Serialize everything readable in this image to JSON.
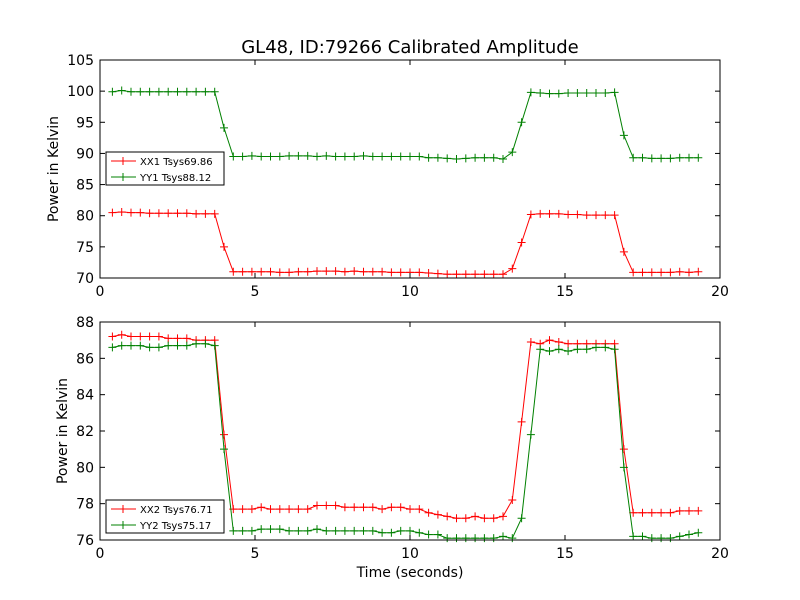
{
  "title": "GL48, ID:79266 Calibrated Amplitude",
  "chart_data": [
    {
      "type": "line",
      "ylabel": "Power in Kelvin",
      "xlabel": "",
      "xlim": [
        0,
        20
      ],
      "ylim": [
        70,
        105
      ],
      "xticks": [
        "0",
        "5",
        "10",
        "15",
        "20"
      ],
      "yticks": [
        "70",
        "75",
        "80",
        "85",
        "90",
        "95",
        "100",
        "105"
      ],
      "grid": false,
      "legend_position": "center-left",
      "x": [
        0.4,
        0.7,
        1.0,
        1.3,
        1.6,
        1.9,
        2.2,
        2.5,
        2.8,
        3.1,
        3.4,
        3.7,
        4.0,
        4.3,
        4.6,
        4.9,
        5.2,
        5.5,
        5.8,
        6.1,
        6.4,
        6.7,
        7.0,
        7.3,
        7.6,
        7.9,
        8.2,
        8.5,
        8.8,
        9.1,
        9.4,
        9.7,
        10.0,
        10.3,
        10.6,
        10.9,
        11.2,
        11.5,
        11.8,
        12.1,
        12.4,
        12.7,
        13.0,
        13.3,
        13.6,
        13.9,
        14.2,
        14.5,
        14.8,
        15.1,
        15.4,
        15.7,
        16.0,
        16.3,
        16.6,
        16.9,
        17.2,
        17.5,
        17.8,
        18.1,
        18.4,
        18.7,
        19.0,
        19.3
      ],
      "series": [
        {
          "name": "XX1 Tsys69.86",
          "color": "#ff0000",
          "values": [
            80.5,
            80.6,
            80.5,
            80.5,
            80.4,
            80.4,
            80.4,
            80.4,
            80.4,
            80.3,
            80.3,
            80.3,
            75.0,
            71.0,
            71.0,
            71.0,
            71.0,
            71.0,
            70.9,
            70.9,
            71.0,
            71.0,
            71.1,
            71.1,
            71.1,
            71.0,
            71.1,
            71.0,
            71.0,
            71.0,
            70.9,
            70.9,
            70.9,
            70.9,
            70.8,
            70.7,
            70.6,
            70.6,
            70.6,
            70.6,
            70.6,
            70.6,
            70.6,
            71.5,
            75.7,
            80.2,
            80.3,
            80.3,
            80.3,
            80.2,
            80.2,
            80.1,
            80.1,
            80.1,
            80.1,
            74.2,
            70.9,
            70.9,
            70.9,
            70.9,
            70.9,
            71.0,
            70.9,
            71.0
          ]
        },
        {
          "name": "YY1 Tsys88.12",
          "color": "#008000",
          "values": [
            99.9,
            100.1,
            99.9,
            99.9,
            99.9,
            99.9,
            99.9,
            99.9,
            99.9,
            99.9,
            99.9,
            99.9,
            94.1,
            89.5,
            89.5,
            89.6,
            89.5,
            89.5,
            89.5,
            89.6,
            89.6,
            89.6,
            89.5,
            89.6,
            89.5,
            89.5,
            89.5,
            89.6,
            89.5,
            89.5,
            89.5,
            89.5,
            89.5,
            89.5,
            89.3,
            89.3,
            89.2,
            89.1,
            89.2,
            89.3,
            89.3,
            89.3,
            89.1,
            90.2,
            95.0,
            99.8,
            99.7,
            99.6,
            99.6,
            99.7,
            99.7,
            99.7,
            99.7,
            99.7,
            99.8,
            92.9,
            89.3,
            89.3,
            89.2,
            89.2,
            89.2,
            89.3,
            89.3,
            89.3
          ]
        }
      ]
    },
    {
      "type": "line",
      "ylabel": "Power in Kelvin",
      "xlabel": "Time (seconds)",
      "xlim": [
        0,
        20
      ],
      "ylim": [
        76,
        88
      ],
      "xticks": [
        "0",
        "5",
        "10",
        "15",
        "20"
      ],
      "yticks": [
        "76",
        "78",
        "80",
        "82",
        "84",
        "86",
        "88"
      ],
      "grid": false,
      "legend_position": "lower-left",
      "x": [
        0.4,
        0.7,
        1.0,
        1.3,
        1.6,
        1.9,
        2.2,
        2.5,
        2.8,
        3.1,
        3.4,
        3.7,
        4.0,
        4.3,
        4.6,
        4.9,
        5.2,
        5.5,
        5.8,
        6.1,
        6.4,
        6.7,
        7.0,
        7.3,
        7.6,
        7.9,
        8.2,
        8.5,
        8.8,
        9.1,
        9.4,
        9.7,
        10.0,
        10.3,
        10.6,
        10.9,
        11.2,
        11.5,
        11.8,
        12.1,
        12.4,
        12.7,
        13.0,
        13.3,
        13.6,
        13.9,
        14.2,
        14.5,
        14.8,
        15.1,
        15.4,
        15.7,
        16.0,
        16.3,
        16.6,
        16.9,
        17.2,
        17.5,
        17.8,
        18.1,
        18.4,
        18.7,
        19.0,
        19.3
      ],
      "series": [
        {
          "name": "XX2 Tsys76.71",
          "color": "#ff0000",
          "values": [
            87.2,
            87.3,
            87.2,
            87.2,
            87.2,
            87.2,
            87.1,
            87.1,
            87.1,
            87.0,
            87.0,
            87.0,
            81.8,
            77.7,
            77.7,
            77.7,
            77.8,
            77.7,
            77.7,
            77.7,
            77.7,
            77.7,
            77.9,
            77.9,
            77.9,
            77.8,
            77.8,
            77.8,
            77.8,
            77.7,
            77.8,
            77.8,
            77.7,
            77.7,
            77.5,
            77.4,
            77.3,
            77.2,
            77.2,
            77.3,
            77.2,
            77.2,
            77.3,
            78.2,
            82.5,
            86.9,
            86.8,
            87.0,
            86.9,
            86.8,
            86.8,
            86.8,
            86.8,
            86.8,
            86.8,
            81.0,
            77.5,
            77.5,
            77.5,
            77.5,
            77.5,
            77.6,
            77.6,
            77.6
          ]
        },
        {
          "name": "YY2 Tsys75.17",
          "color": "#008000",
          "values": [
            86.6,
            86.7,
            86.7,
            86.7,
            86.6,
            86.6,
            86.7,
            86.7,
            86.7,
            86.8,
            86.8,
            86.7,
            81.0,
            76.5,
            76.5,
            76.5,
            76.6,
            76.6,
            76.6,
            76.5,
            76.5,
            76.5,
            76.6,
            76.5,
            76.5,
            76.5,
            76.5,
            76.5,
            76.5,
            76.4,
            76.4,
            76.5,
            76.5,
            76.4,
            76.3,
            76.3,
            76.1,
            76.1,
            76.1,
            76.1,
            76.1,
            76.1,
            76.2,
            76.1,
            77.2,
            81.8,
            86.5,
            86.4,
            86.5,
            86.4,
            86.5,
            86.5,
            86.6,
            86.6,
            86.5,
            80.0,
            76.2,
            76.2,
            76.1,
            76.1,
            76.1,
            76.2,
            76.3,
            76.4
          ]
        }
      ]
    }
  ]
}
